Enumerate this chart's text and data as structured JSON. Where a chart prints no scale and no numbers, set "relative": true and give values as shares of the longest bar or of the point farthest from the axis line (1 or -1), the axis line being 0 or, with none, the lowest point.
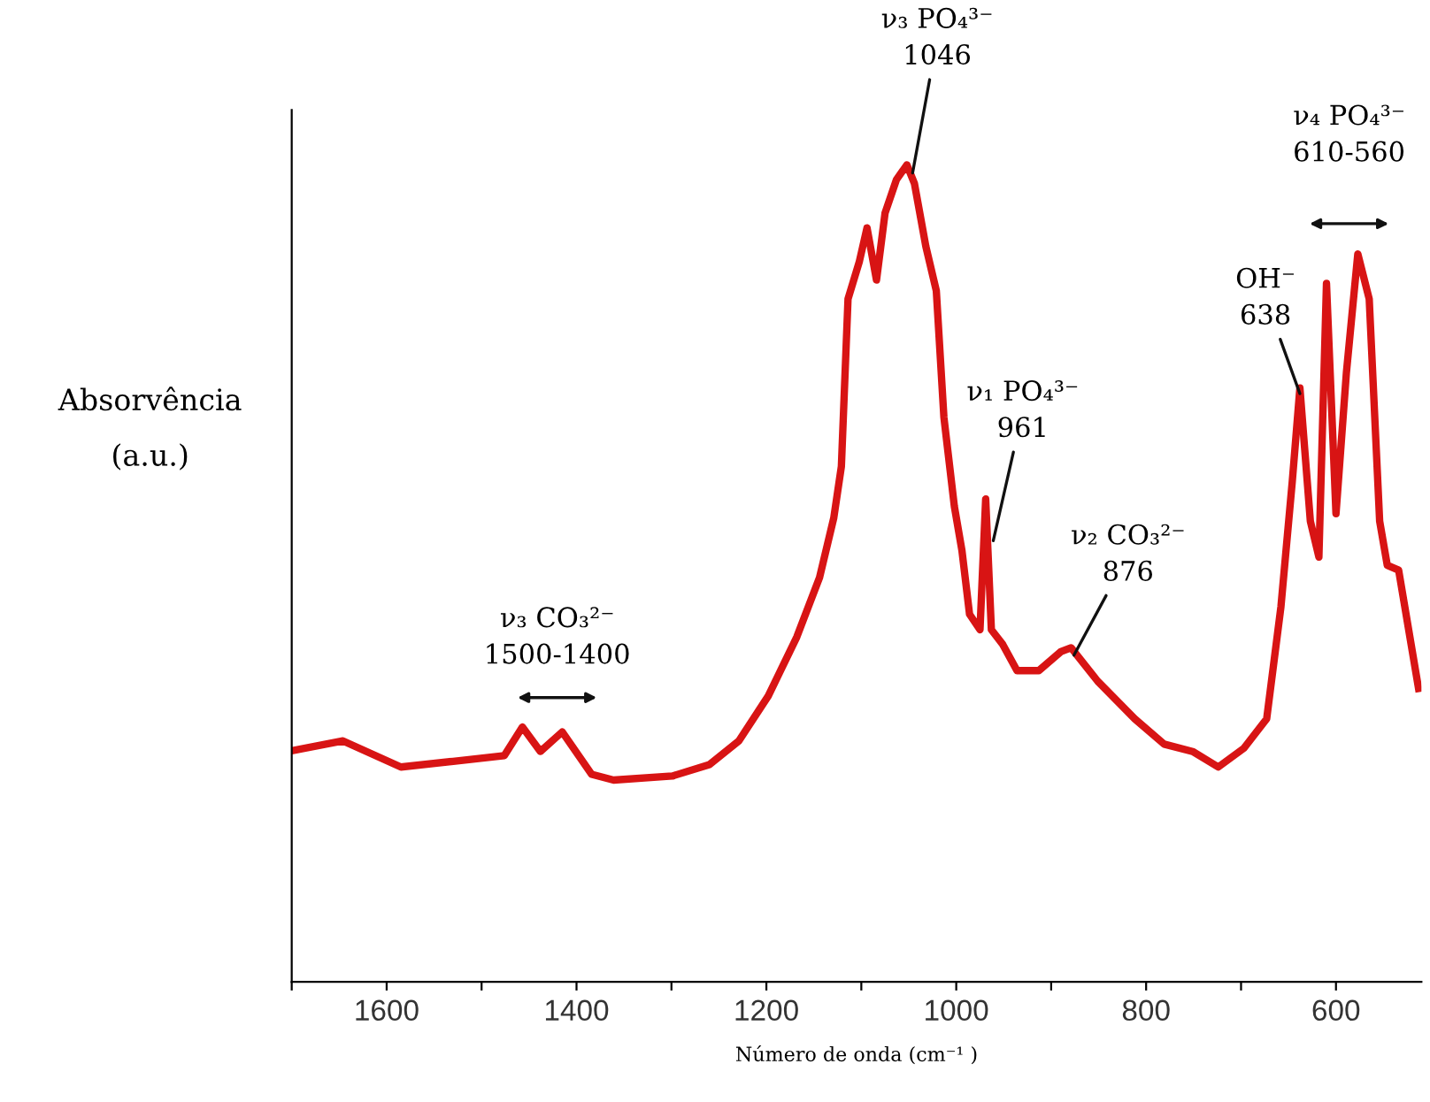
{
  "chart_data": {
    "type": "line",
    "relative": true,
    "xlabel": "Número de onda (cm⁻¹ )",
    "ylabel": "Absorvência\n(a.u.)",
    "xlim": [
      1700,
      510
    ],
    "xticks": [
      {
        "value": 1700,
        "label": null
      },
      1600,
      {
        "value": 1500,
        "label": null
      },
      1400,
      {
        "value": 1300,
        "label": null
      },
      1200,
      {
        "value": 1100,
        "label": null
      },
      1000,
      {
        "value": 900,
        "label": null
      },
      800,
      {
        "value": 700,
        "label": null
      },
      600
    ],
    "grid": false,
    "series": [
      {
        "color": "#d81414",
        "x": [
          1700,
          1646,
          1585,
          1530,
          1476,
          1457,
          1438,
          1415,
          1384,
          1361,
          1299,
          1260,
          1229,
          1198,
          1168,
          1144,
          1129,
          1121,
          1114,
          1102,
          1094,
          1084,
          1075,
          1063,
          1052,
          1044,
          1032,
          1021,
          1013,
          1002,
          994,
          986,
          975,
          969,
          963,
          951,
          936,
          913,
          890,
          879,
          851,
          812,
          781,
          751,
          724,
          697,
          673,
          658,
          646,
          638,
          627,
          618,
          610,
          600,
          589,
          577,
          565,
          554,
          546,
          534,
          513
        ],
        "values": [
          0.283,
          0.295,
          0.263,
          0.27,
          0.277,
          0.312,
          0.282,
          0.306,
          0.254,
          0.247,
          0.252,
          0.266,
          0.295,
          0.35,
          0.422,
          0.495,
          0.568,
          0.631,
          0.836,
          0.882,
          0.923,
          0.859,
          0.941,
          0.982,
          1.0,
          0.977,
          0.9,
          0.846,
          0.691,
          0.582,
          0.528,
          0.45,
          0.431,
          0.591,
          0.431,
          0.413,
          0.381,
          0.381,
          0.404,
          0.409,
          0.368,
          0.322,
          0.291,
          0.282,
          0.263,
          0.286,
          0.322,
          0.459,
          0.613,
          0.727,
          0.564,
          0.52,
          0.855,
          0.573,
          0.746,
          0.891,
          0.836,
          0.564,
          0.51,
          0.504,
          0.359
        ]
      }
    ],
    "annotations": [
      {
        "text": "ν₃ PO₄³⁻\n1046",
        "x": 1046,
        "y": 0.99
      },
      {
        "text": "ν₁ PO₄³⁻\n961",
        "x": 961,
        "y": 0.54
      },
      {
        "text": "ν₂ CO₃²⁻\n876",
        "x": 876,
        "y": 0.4
      },
      {
        "text": "OH⁻\n638",
        "x": 638,
        "y": 0.72
      },
      "ν₃ CO₃²⁻\n1500-1400",
      "ν₄ PO₄³⁻\n610-560"
    ]
  }
}
